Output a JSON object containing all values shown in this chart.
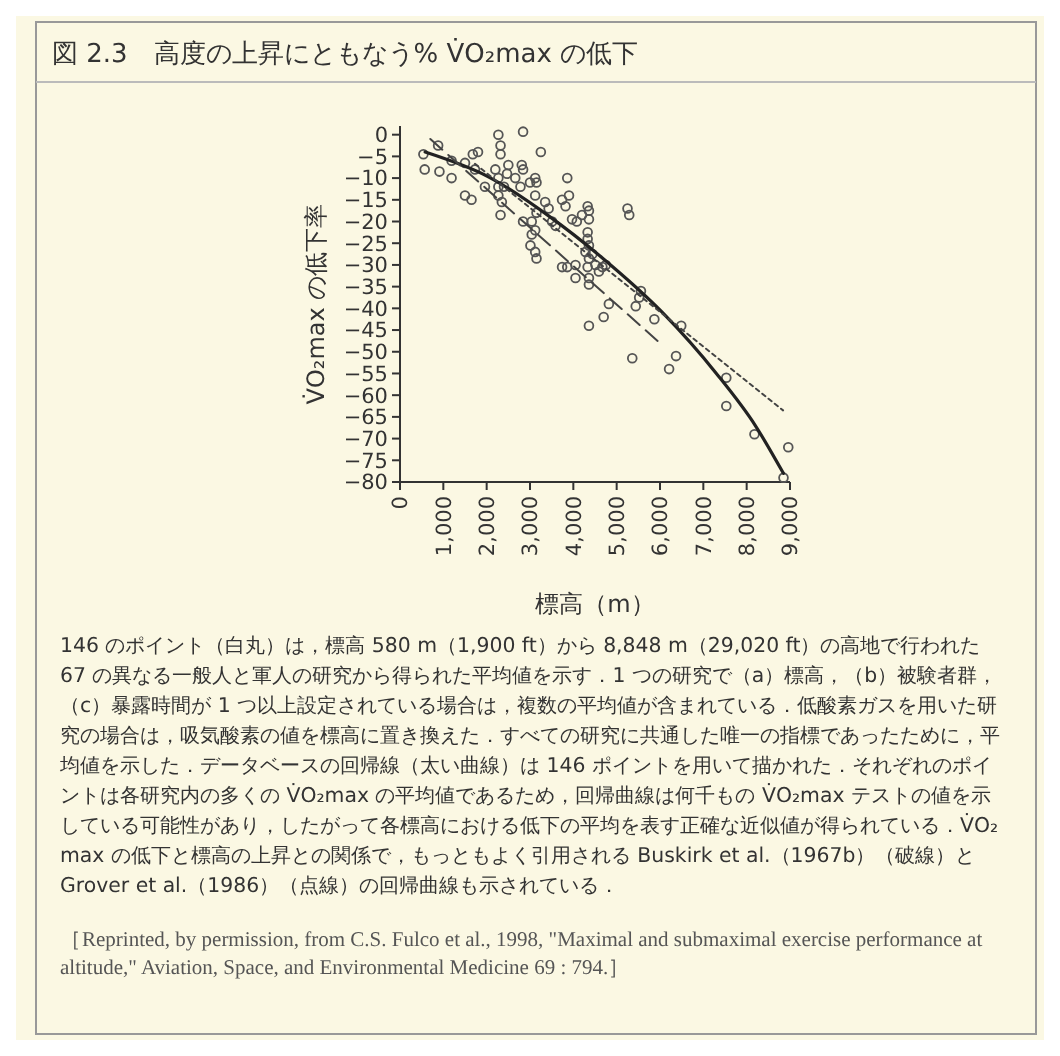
{
  "chart_data": {
    "type": "scatter",
    "title": "図 2.3　高度の上昇にともなう% V̇O₂max の低下",
    "xlabel": "標高（m）",
    "ylabel": "V̇O₂max の低下率",
    "grid": false,
    "xlim": [
      0,
      9000
    ],
    "xticks": [
      0,
      {
        "value": 1000,
        "label": "1,000"
      },
      {
        "value": 2000,
        "label": "2,000"
      },
      {
        "value": 3000,
        "label": "3,000"
      },
      {
        "value": 4000,
        "label": "4,000"
      },
      {
        "value": 5000,
        "label": "5,000"
      },
      {
        "value": 6000,
        "label": "6,000"
      },
      {
        "value": 7000,
        "label": "7,000"
      },
      {
        "value": 8000,
        "label": "8,000"
      },
      {
        "value": 9000,
        "label": "9,000"
      }
    ],
    "ylim": [
      -80,
      2
    ],
    "yticks": [
      {
        "value": 0,
        "label": "0"
      },
      {
        "value": -5,
        "label": "−5"
      },
      {
        "value": -10,
        "label": "−10"
      },
      {
        "value": -15,
        "label": "−15"
      },
      {
        "value": -20,
        "label": "−20"
      },
      {
        "value": -25,
        "label": "−25"
      },
      {
        "value": -30,
        "label": "−30"
      },
      {
        "value": -35,
        "label": "−35"
      },
      {
        "value": -40,
        "label": "−40"
      },
      {
        "value": -45,
        "label": "−45"
      },
      {
        "value": -50,
        "label": "−50"
      },
      {
        "value": -55,
        "label": "−55"
      },
      {
        "value": -60,
        "label": "−60"
      },
      {
        "value": -65,
        "label": "−65"
      },
      {
        "value": -70,
        "label": "−70"
      },
      {
        "value": -75,
        "label": "−75"
      },
      {
        "value": -80,
        "label": "−80"
      }
    ],
    "series": [
      {
        "type": "scatter",
        "marker": "circle",
        "color": "#555555",
        "x": [
          540,
          570,
          880,
          910,
          1190,
          1190,
          1500,
          1500,
          1650,
          1680,
          1800,
          1730,
          1960,
          2270,
          2320,
          2320,
          2200,
          2270,
          2270,
          2270,
          2350,
          2320,
          2500,
          2470,
          2660,
          2400,
          2840,
          2810,
          2840,
          2780,
          3000,
          3120,
          3150,
          3250,
          3120,
          2840,
          3040,
          3120,
          3040,
          3010,
          3120,
          3150,
          3150,
          3350,
          3430,
          3510,
          3590,
          3740,
          3820,
          3860,
          3900,
          3970,
          4080,
          4050,
          4050,
          3740,
          3860,
          4200,
          4330,
          4360,
          4360,
          4330,
          4330,
          4360,
          4280,
          4360,
          4330,
          4360,
          4360,
          4440,
          4510,
          4590,
          4670,
          4750,
          4820,
          4700,
          4360,
          5250,
          5290,
          5360,
          5440,
          5560,
          5520,
          5870,
          6210,
          6370,
          6490,
          7530,
          7530,
          8180,
          8960,
          8850
        ],
        "values": [
          -4.5,
          -8,
          -2.5,
          -8.5,
          -6,
          -10,
          -6.5,
          -14,
          -15,
          -4.5,
          -4,
          -8,
          -12,
          0,
          -2.5,
          -4.5,
          -8,
          -10,
          -12,
          -14,
          -15.5,
          -18.5,
          -7,
          -9,
          -10,
          -12,
          0.7,
          -7,
          -8,
          -12,
          -11,
          -10,
          -11,
          -4,
          -14,
          -20,
          -20,
          -22,
          -23,
          -25.5,
          -27,
          -28.5,
          -18,
          -15.5,
          -17,
          -20,
          -21,
          -15,
          -16.5,
          -10,
          -14,
          -19.5,
          -20,
          -33,
          -30,
          -30.5,
          -30.5,
          -18.5,
          -16.5,
          -17.5,
          -19.5,
          -22.5,
          -24,
          -25.5,
          -27,
          -28.5,
          -30.5,
          -33,
          -34.5,
          -27.5,
          -30,
          -31.5,
          -30.5,
          -30,
          -39,
          -42,
          -44,
          -17,
          -18.5,
          -51.5,
          -39.5,
          -36,
          -37.5,
          -42.5,
          -54,
          -51,
          -44,
          -56,
          -62.5,
          -69,
          -72,
          -79
        ]
      },
      {
        "type": "line",
        "line_style": "solid",
        "color": "#222222",
        "x": [
          580,
          2040,
          3430,
          4670,
          6060,
          7300,
          8200,
          8848
        ],
        "values": [
          -4,
          -9.7,
          -18.7,
          -28.4,
          -41,
          -55,
          -67,
          -78
        ]
      },
      {
        "type": "line",
        "line_style": "dashed",
        "color": "#444444",
        "x": [
          700,
          6000
        ],
        "values": [
          -1,
          -48
        ]
      },
      {
        "type": "line",
        "line_style": "dotted",
        "color": "#444444",
        "x": [
          1730,
          8840
        ],
        "values": [
          -6.7,
          -63.5
        ]
      }
    ],
    "annotations": [
      "146 のポイント（白丸）は，標高 580 m（1,900 ft）から 8,848 m（29,020 ft）の高地で行われた 67 の異なる一般人と軍人の研究から得られた平均値を示す．1 つの研究で（a）標高，（b）被験者群，（c）暴露時間が 1 つ以上設定されている場合は，複数の平均値が含まれている．低酸素ガスを用いた研究の場合は，吸気酸素の値を標高に置き換えた．すべての研究に共通した唯一の指標であったために，平均値を示した．データベースの回帰線（太い曲線）は 146 ポイントを用いて描かれた．それぞれのポイントは各研究内の多くの V̇O₂max の平均値であるため，回帰曲線は何千もの V̇O₂max テストの値を示している可能性があり，したがって各標高における低下の平均を表す正確な近似値が得られている．V̇O₂max の低下と標高の上昇との関係で，もっともよく引用される Buskirk et al.（1967b）（破線）と Grover et al.（1986）（点線）の回帰曲線も示されている．",
      "［Reprinted, by permission, from C.S. Fulco et al., 1998, \"Maximal and submaximal exercise performance at altitude,\" Aviation, Space, and Environmental Medicine 69 : 794.］"
    ]
  }
}
